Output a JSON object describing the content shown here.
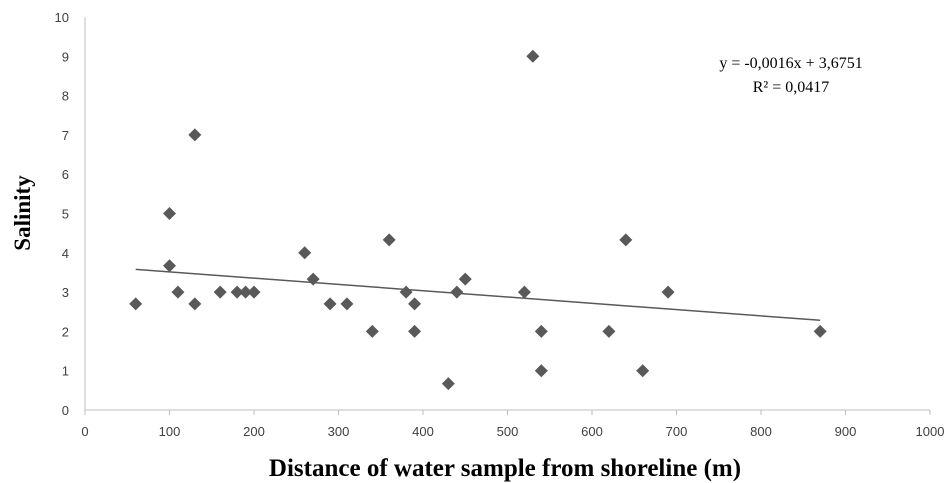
{
  "chart_data": {
    "type": "scatter",
    "title": "",
    "xlabel": "Distance of water sample from shoreline (m)",
    "ylabel": "Salinity",
    "xlim": [
      0,
      1000
    ],
    "ylim": [
      0,
      10
    ],
    "xticks": [
      0,
      100,
      200,
      300,
      400,
      500,
      600,
      700,
      800,
      900,
      1000
    ],
    "yticks": [
      0,
      1,
      2,
      3,
      4,
      5,
      6,
      7,
      8,
      9,
      10
    ],
    "grid": false,
    "legend": "none",
    "marker_color": "#595959",
    "marker": "diamond",
    "points": [
      {
        "x": 60,
        "y": 2.7
      },
      {
        "x": 100,
        "y": 5.0
      },
      {
        "x": 100,
        "y": 3.67
      },
      {
        "x": 110,
        "y": 3.0
      },
      {
        "x": 130,
        "y": 7.0
      },
      {
        "x": 130,
        "y": 2.7
      },
      {
        "x": 160,
        "y": 3.0
      },
      {
        "x": 180,
        "y": 3.0
      },
      {
        "x": 190,
        "y": 3.0
      },
      {
        "x": 200,
        "y": 3.0
      },
      {
        "x": 260,
        "y": 4.0
      },
      {
        "x": 270,
        "y": 3.33
      },
      {
        "x": 290,
        "y": 2.7
      },
      {
        "x": 310,
        "y": 2.7
      },
      {
        "x": 340,
        "y": 2.0
      },
      {
        "x": 360,
        "y": 4.33
      },
      {
        "x": 380,
        "y": 3.0
      },
      {
        "x": 390,
        "y": 2.7
      },
      {
        "x": 390,
        "y": 2.0
      },
      {
        "x": 430,
        "y": 0.67
      },
      {
        "x": 440,
        "y": 3.0
      },
      {
        "x": 450,
        "y": 3.33
      },
      {
        "x": 520,
        "y": 3.0
      },
      {
        "x": 530,
        "y": 9.0
      },
      {
        "x": 540,
        "y": 2.0
      },
      {
        "x": 540,
        "y": 1.0
      },
      {
        "x": 620,
        "y": 2.0
      },
      {
        "x": 640,
        "y": 4.33
      },
      {
        "x": 660,
        "y": 1.0
      },
      {
        "x": 690,
        "y": 3.0
      },
      {
        "x": 870,
        "y": 2.0
      }
    ],
    "trendline": {
      "type": "linear",
      "slope": -0.0016,
      "intercept": 3.6751,
      "x_range": [
        60,
        870
      ],
      "color": "#595959",
      "equation_label": "y = -0,0016x + 3,6751",
      "r2_label": "R² = 0,0417"
    }
  }
}
